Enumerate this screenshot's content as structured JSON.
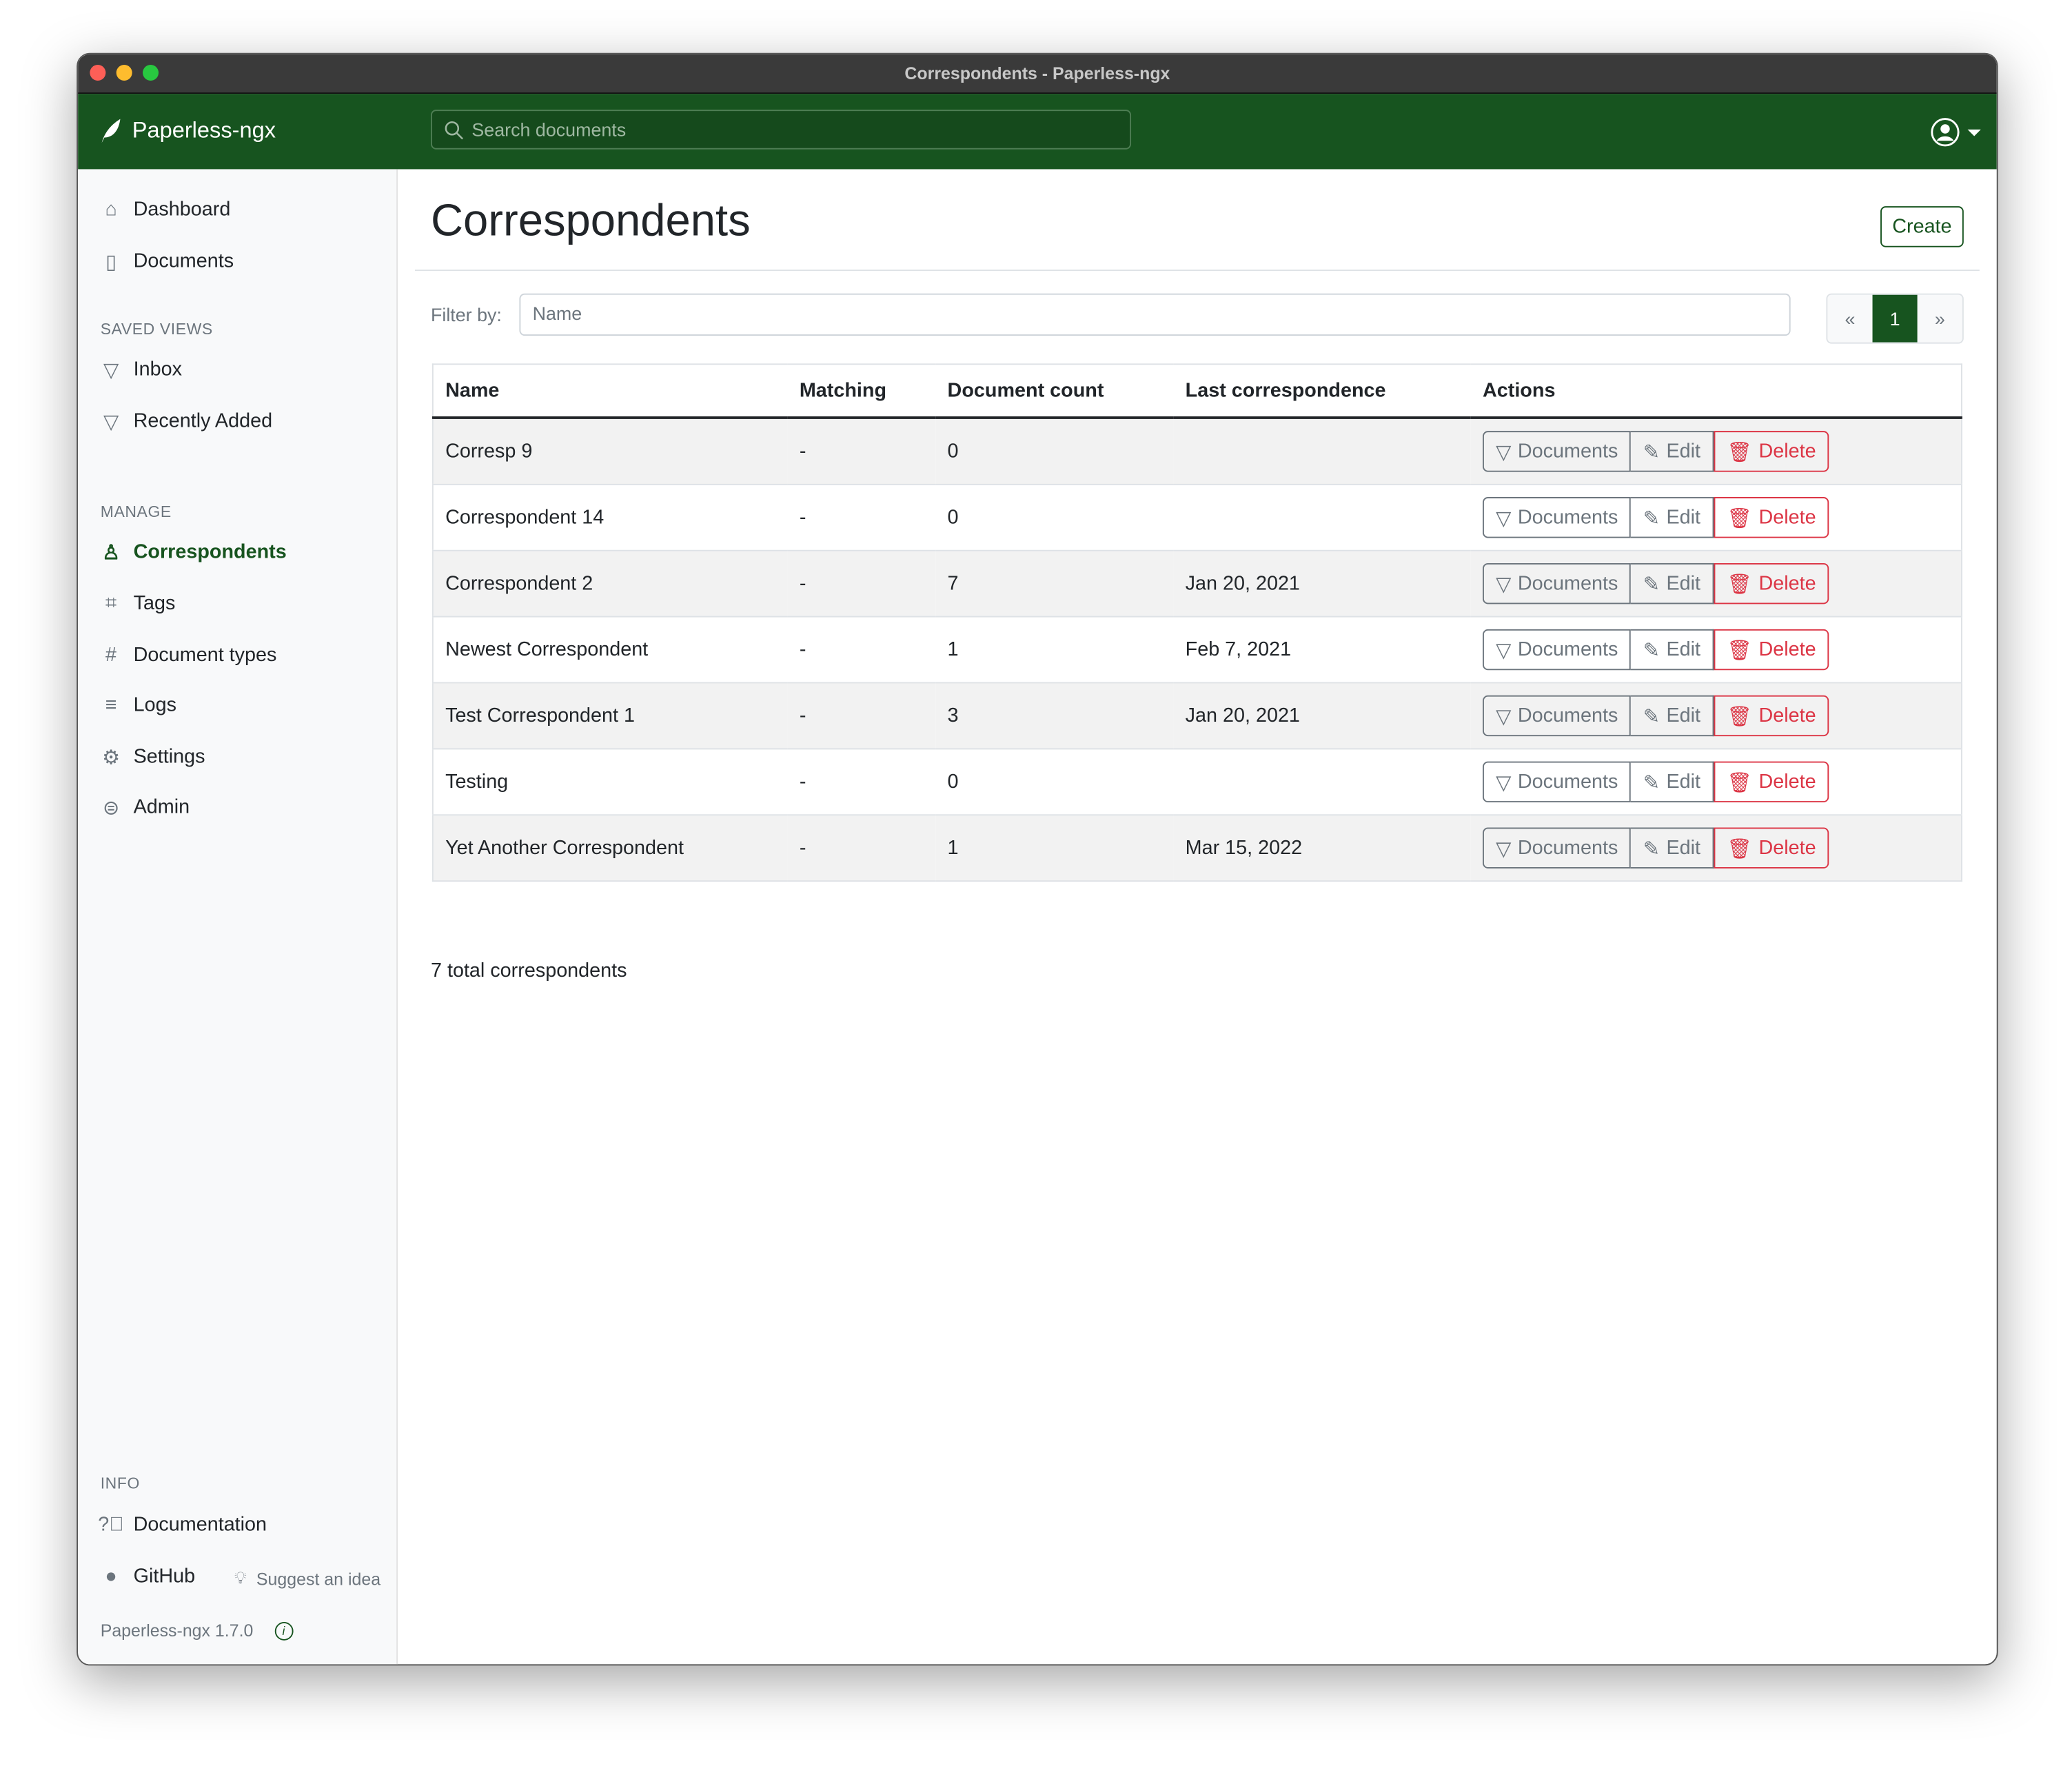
{
  "window": {
    "title": "Correspondents - Paperless-ngx"
  },
  "navbar": {
    "brand": "Paperless-ngx",
    "search_placeholder": "Search documents"
  },
  "sidebar": {
    "items": [
      {
        "label": "Dashboard",
        "icon": "house-icon"
      },
      {
        "label": "Documents",
        "icon": "files-icon"
      }
    ],
    "saved_views_title": "SAVED VIEWS",
    "saved_views": [
      {
        "label": "Inbox",
        "icon": "funnel-icon"
      },
      {
        "label": "Recently Added",
        "icon": "funnel-icon"
      }
    ],
    "manage_title": "MANAGE",
    "manage": [
      {
        "label": "Correspondents",
        "icon": "person-icon",
        "active": true
      },
      {
        "label": "Tags",
        "icon": "tags-icon"
      },
      {
        "label": "Document types",
        "icon": "hash-icon"
      },
      {
        "label": "Logs",
        "icon": "text-left-icon"
      },
      {
        "label": "Settings",
        "icon": "gear-icon"
      },
      {
        "label": "Admin",
        "icon": "toggles-icon"
      }
    ],
    "info_title": "INFO",
    "documentation": "Documentation",
    "github": "GitHub",
    "suggest": "Suggest an idea",
    "version": "Paperless-ngx 1.7.0"
  },
  "main": {
    "title": "Correspondents",
    "create_label": "Create",
    "filter_label": "Filter by:",
    "filter_placeholder": "Name",
    "pager": {
      "prev": "«",
      "current": "1",
      "next": "»"
    },
    "columns": [
      "Name",
      "Matching",
      "Document count",
      "Last correspondence",
      "Actions"
    ],
    "actions": {
      "documents": "Documents",
      "edit": "Edit",
      "delete": "Delete"
    },
    "rows": [
      {
        "name": "Corresp 9",
        "matching": "-",
        "count": "0",
        "last": ""
      },
      {
        "name": "Correspondent 14",
        "matching": "-",
        "count": "0",
        "last": ""
      },
      {
        "name": "Correspondent 2",
        "matching": "-",
        "count": "7",
        "last": "Jan 20, 2021"
      },
      {
        "name": "Newest Correspondent",
        "matching": "-",
        "count": "1",
        "last": "Feb 7, 2021"
      },
      {
        "name": "Test Correspondent 1",
        "matching": "-",
        "count": "3",
        "last": "Jan 20, 2021"
      },
      {
        "name": "Testing",
        "matching": "-",
        "count": "0",
        "last": ""
      },
      {
        "name": "Yet Another Correspondent",
        "matching": "-",
        "count": "1",
        "last": "Mar 15, 2022"
      }
    ],
    "total": "7 total correspondents"
  },
  "colors": {
    "brand": "#17541f",
    "danger": "#dc3545",
    "secondary": "#6c757d"
  }
}
